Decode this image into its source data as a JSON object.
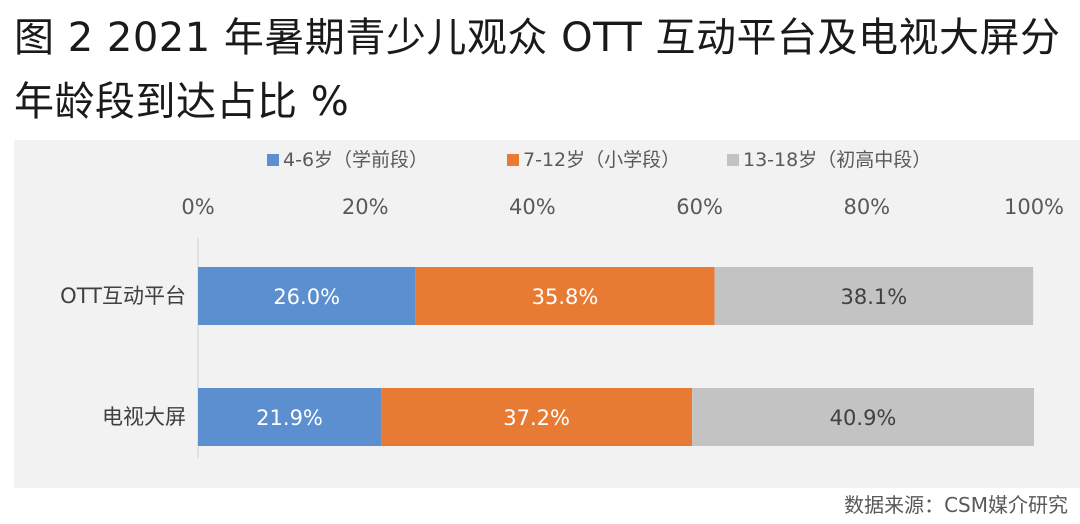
{
  "title": "图 2 2021 年暑期青少儿观众 OTT 互动平台及电视大屏分年龄段到达占比 %",
  "source": "数据来源：CSM媒介研究",
  "chart_data": {
    "type": "bar",
    "orientation": "horizontal",
    "stacked": true,
    "percent": true,
    "categories": [
      "OTT互动平台",
      "电视大屏"
    ],
    "series": [
      {
        "name": "4-6岁（学前段）",
        "values": [
          26.0,
          21.9
        ],
        "labels": [
          "26.0%",
          "21.9%"
        ],
        "color": "#5b8fd0"
      },
      {
        "name": "7-12岁（小学段）",
        "values": [
          35.8,
          37.2
        ],
        "labels": [
          "35.8%",
          "37.2%"
        ],
        "color": "#e87b34"
      },
      {
        "name": "13-18岁（初高中段）",
        "values": [
          38.1,
          40.9
        ],
        "labels": [
          "38.1%",
          "40.9%"
        ],
        "color": "#c3c3c3"
      }
    ],
    "xlim": [
      0,
      100
    ],
    "xticks": [
      "0%",
      "20%",
      "40%",
      "60%",
      "80%",
      "100%"
    ],
    "axis_position": "top",
    "legend_position": "top",
    "grid": false
  }
}
